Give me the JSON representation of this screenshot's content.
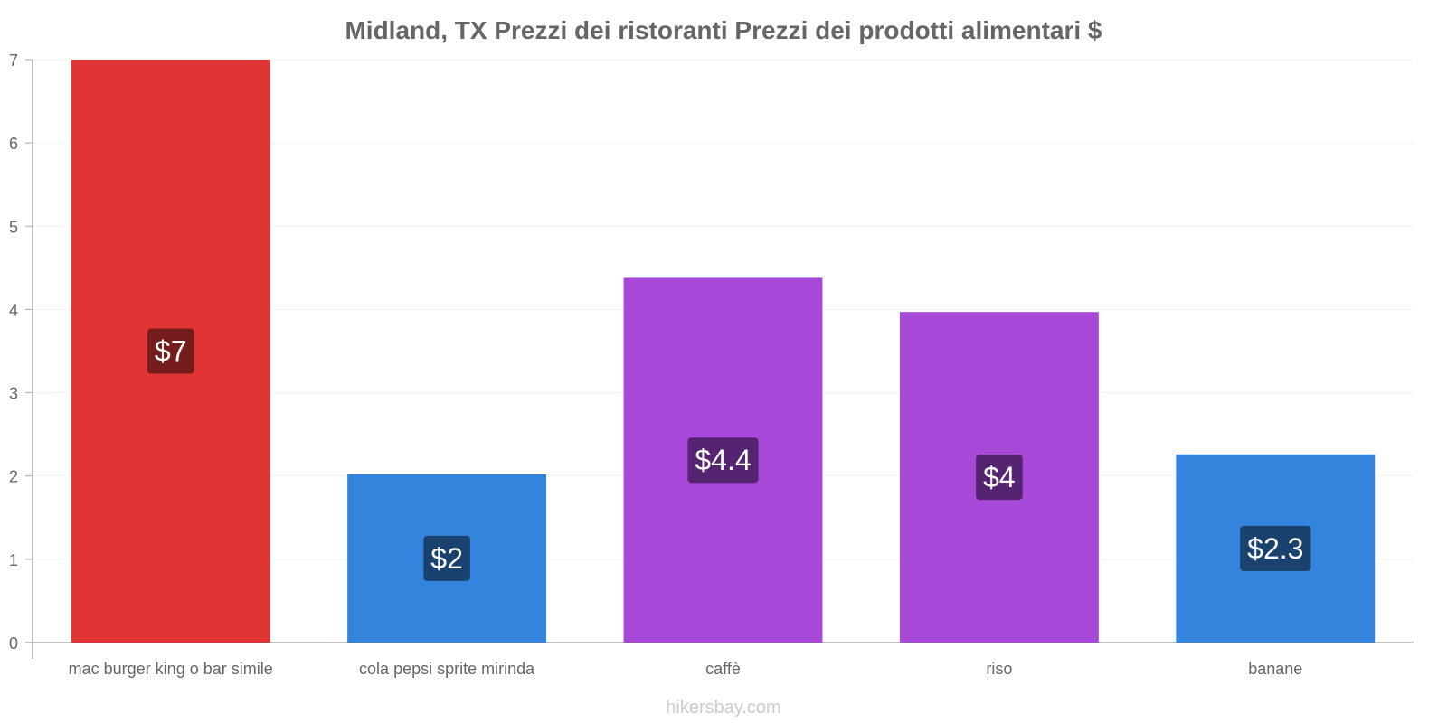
{
  "chart_data": {
    "type": "bar",
    "title": "Midland, TX Prezzi dei ristoranti Prezzi dei prodotti alimentari $",
    "categories": [
      "mac burger king o bar simile",
      "cola pepsi sprite mirinda",
      "caffè",
      "riso",
      "banane"
    ],
    "values": [
      7,
      2.02,
      4.38,
      3.97,
      2.26
    ],
    "value_labels": [
      "$7",
      "$2",
      "$4.4",
      "$4",
      "$2.3"
    ],
    "bar_colors": [
      "#e03535",
      "#3483dd",
      "#a748d8",
      "#a748d8",
      "#3483dd"
    ],
    "label_bg_colors": [
      "#751d1d",
      "#1a426f",
      "#552470",
      "#552470",
      "#1a426f"
    ],
    "ylim": [
      0,
      7
    ],
    "yticks": [
      0,
      1,
      2,
      3,
      4,
      5,
      6,
      7
    ],
    "xlabel": "",
    "ylabel": "",
    "grid": true,
    "legend": "none"
  },
  "watermark": "hikersbay.com"
}
